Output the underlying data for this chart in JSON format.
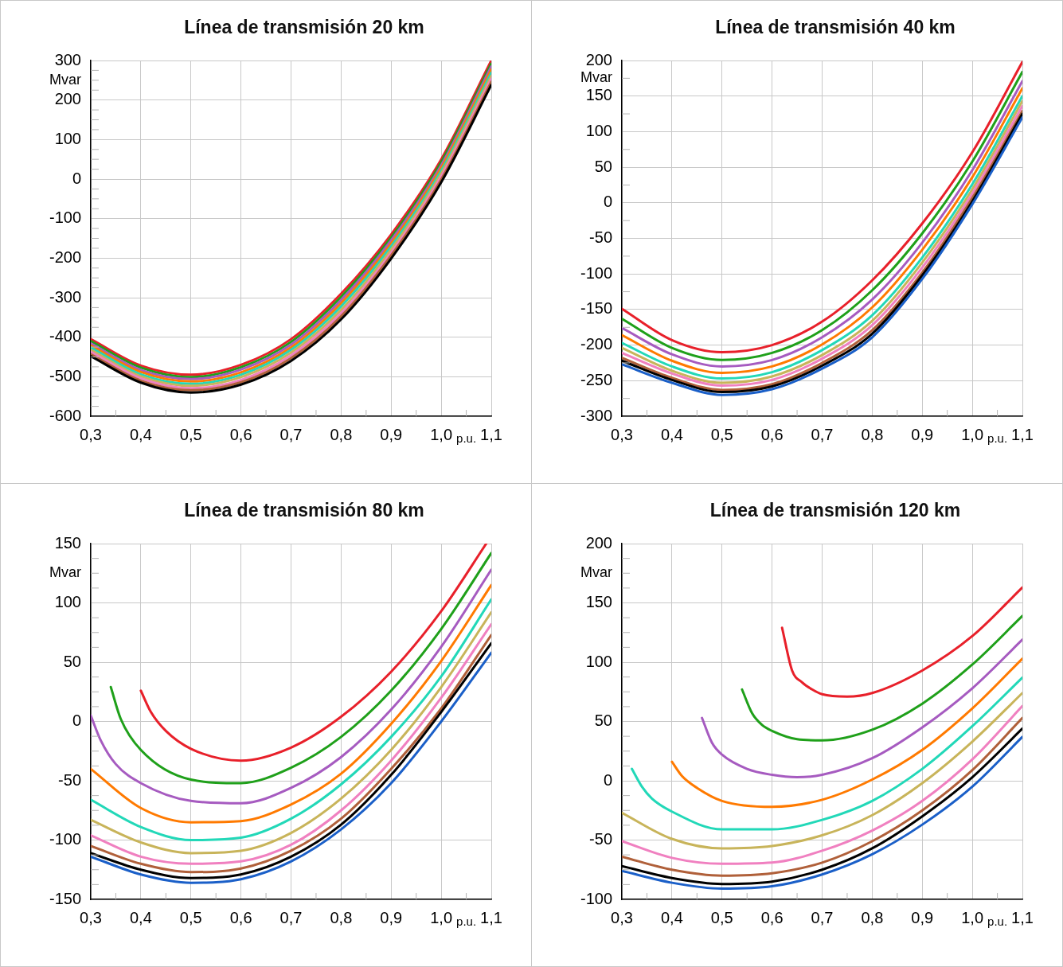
{
  "chart_data": [
    {
      "type": "line",
      "title": "Línea de transmisión 20 km",
      "xlabel": "p.u.",
      "ylabel": "Mvar",
      "grid": true,
      "marker": "none",
      "xlim": [
        0.3,
        1.1
      ],
      "ylim": [
        -600,
        300
      ],
      "xticks": [
        {
          "value": 0.3,
          "label": "0,3"
        },
        {
          "value": 0.35,
          "label": null
        },
        {
          "value": 0.4,
          "label": "0,4"
        },
        {
          "value": 0.45,
          "label": null
        },
        {
          "value": 0.5,
          "label": "0,5"
        },
        {
          "value": 0.55,
          "label": null
        },
        {
          "value": 0.6,
          "label": "0,6"
        },
        {
          "value": 0.65,
          "label": null
        },
        {
          "value": 0.7,
          "label": "0,7"
        },
        {
          "value": 0.75,
          "label": null
        },
        {
          "value": 0.8,
          "label": "0,8"
        },
        {
          "value": 0.85,
          "label": null
        },
        {
          "value": 0.9,
          "label": "0,9"
        },
        {
          "value": 0.95,
          "label": null
        },
        {
          "value": 1.0,
          "label": "1,0"
        },
        {
          "value": 1.05,
          "label": null
        },
        {
          "value": 1.1,
          "label": "1,1"
        }
      ],
      "yticks": [
        -600,
        {
          "value": -575,
          "label": null
        },
        {
          "value": -550,
          "label": null
        },
        {
          "value": -525,
          "label": null
        },
        -500,
        {
          "value": -475,
          "label": null
        },
        {
          "value": -450,
          "label": null
        },
        {
          "value": -425,
          "label": null
        },
        -400,
        {
          "value": -375,
          "label": null
        },
        {
          "value": -350,
          "label": null
        },
        {
          "value": -325,
          "label": null
        },
        -300,
        {
          "value": -275,
          "label": null
        },
        {
          "value": -250,
          "label": null
        },
        {
          "value": -225,
          "label": null
        },
        -200,
        {
          "value": -175,
          "label": null
        },
        {
          "value": -150,
          "label": null
        },
        {
          "value": -125,
          "label": null
        },
        -100,
        {
          "value": -75,
          "label": null
        },
        {
          "value": -50,
          "label": null
        },
        {
          "value": -25,
          "label": null
        },
        0,
        {
          "value": 25,
          "label": null
        },
        {
          "value": 50,
          "label": null
        },
        {
          "value": 75,
          "label": null
        },
        100,
        {
          "value": 125,
          "label": null
        },
        {
          "value": 150,
          "label": null
        },
        {
          "value": 175,
          "label": null
        },
        200,
        {
          "value": 225,
          "label": null
        },
        {
          "value": 250,
          "label": null
        },
        {
          "value": 275,
          "label": null
        },
        300
      ],
      "x": [
        0.3,
        0.4,
        0.5,
        0.6,
        0.7,
        0.8,
        0.9,
        1.0,
        1.1
      ],
      "series": [
        {
          "color": "#000000",
          "values": [
            -448,
            -515,
            -540,
            -520,
            -460,
            -355,
            -201,
            -8,
            238
          ]
        },
        {
          "color": "#b0603a",
          "values": [
            -443,
            -510,
            -534,
            -514,
            -453,
            -347,
            -193,
            -1,
            246
          ]
        },
        {
          "color": "#f080c0",
          "values": [
            -437,
            -504,
            -529,
            -508,
            -446,
            -339,
            -186,
            7,
            254
          ]
        },
        {
          "color": "#c8b45a",
          "values": [
            -432,
            -499,
            -523,
            -501,
            -439,
            -331,
            -178,
            14,
            261
          ]
        },
        {
          "color": "#22d8b8",
          "values": [
            -426,
            -494,
            -518,
            -495,
            -432,
            -322,
            -170,
            21,
            269
          ]
        },
        {
          "color": "#ff7a00",
          "values": [
            -421,
            -488,
            -512,
            -489,
            -426,
            -314,
            -163,
            28,
            277
          ]
        },
        {
          "color": "#a65bc0",
          "values": [
            -416,
            -483,
            -506,
            -482,
            -419,
            -306,
            -155,
            35,
            285
          ]
        },
        {
          "color": "#1fa01a",
          "values": [
            -410,
            -477,
            -501,
            -476,
            -412,
            -298,
            -148,
            43,
            292
          ]
        },
        {
          "color": "#e8202a",
          "values": [
            -405,
            -472,
            -495,
            -470,
            -405,
            -290,
            -140,
            50,
            300
          ]
        }
      ]
    },
    {
      "type": "line",
      "title": "Línea de transmisión 40 km",
      "xlabel": "p.u.",
      "ylabel": "Mvar",
      "grid": true,
      "marker": "none",
      "xlim": [
        0.3,
        1.1
      ],
      "ylim": [
        -300,
        200
      ],
      "xticks": [
        {
          "value": 0.3,
          "label": "0,3"
        },
        {
          "value": 0.35,
          "label": null
        },
        {
          "value": 0.4,
          "label": "0,4"
        },
        {
          "value": 0.45,
          "label": null
        },
        {
          "value": 0.5,
          "label": "0,5"
        },
        {
          "value": 0.55,
          "label": null
        },
        {
          "value": 0.6,
          "label": "0,6"
        },
        {
          "value": 0.65,
          "label": null
        },
        {
          "value": 0.7,
          "label": "0,7"
        },
        {
          "value": 0.75,
          "label": null
        },
        {
          "value": 0.8,
          "label": "0,8"
        },
        {
          "value": 0.85,
          "label": null
        },
        {
          "value": 0.9,
          "label": "0,9"
        },
        {
          "value": 0.95,
          "label": null
        },
        {
          "value": 1.0,
          "label": "1,0"
        },
        {
          "value": 1.05,
          "label": null
        },
        {
          "value": 1.1,
          "label": "1,1"
        }
      ],
      "yticks": [
        -300,
        {
          "value": -275,
          "label": null
        },
        -250,
        {
          "value": -225,
          "label": null
        },
        -200,
        {
          "value": -175,
          "label": null
        },
        -150,
        {
          "value": -125,
          "label": null
        },
        -100,
        {
          "value": -75,
          "label": null
        },
        -50,
        {
          "value": -25,
          "label": null
        },
        0,
        {
          "value": 25,
          "label": null
        },
        50,
        {
          "value": 75,
          "label": null
        },
        100,
        {
          "value": 125,
          "label": null
        },
        150,
        {
          "value": 175,
          "label": null
        },
        200
      ],
      "x": [
        0.3,
        0.4,
        0.5,
        0.6,
        0.7,
        0.8,
        0.9,
        1.0,
        1.1
      ],
      "series": [
        {
          "color": "#1a5fc8",
          "values": [
            -227,
            -253,
            -270,
            -262,
            -233,
            -189,
            -107,
            -2,
            120
          ]
        },
        {
          "color": "#000000",
          "values": [
            -222,
            -249,
            -266,
            -258,
            -229,
            -184,
            -102,
            2,
            125
          ]
        },
        {
          "color": "#b0603a",
          "values": [
            -218,
            -246,
            -263,
            -255,
            -225,
            -179,
            -98,
            7,
            129
          ]
        },
        {
          "color": "#f080c0",
          "values": [
            -211,
            -240,
            -257,
            -249,
            -219,
            -172,
            -91,
            13,
            136
          ]
        },
        {
          "color": "#c8b45a",
          "values": [
            -204,
            -236,
            -253,
            -244,
            -214,
            -166,
            -84,
            19,
            143
          ]
        },
        {
          "color": "#22d8b8",
          "values": [
            -197,
            -230,
            -247,
            -238,
            -207,
            -158,
            -77,
            26,
            150
          ]
        },
        {
          "color": "#ff7a00",
          "values": [
            -186,
            -222,
            -239,
            -230,
            -199,
            -147,
            -66,
            36,
            161
          ]
        },
        {
          "color": "#a65bc0",
          "values": [
            -176,
            -213,
            -230,
            -221,
            -189,
            -136,
            -56,
            46,
            171
          ]
        },
        {
          "color": "#1fa01a",
          "values": [
            -163,
            -204,
            -221,
            -211,
            -179,
            -123,
            -43,
            58,
            184
          ]
        },
        {
          "color": "#e8202a",
          "values": [
            -149,
            -193,
            -210,
            -200,
            -167,
            -109,
            -29,
            71,
            198
          ]
        }
      ]
    },
    {
      "type": "line",
      "title": "Línea de transmisión 80 km",
      "xlabel": "p.u.",
      "ylabel": "Mvar",
      "grid": true,
      "marker": "none",
      "xlim": [
        0.3,
        1.1
      ],
      "ylim": [
        -150,
        150
      ],
      "xticks": [
        {
          "value": 0.3,
          "label": "0,3"
        },
        {
          "value": 0.35,
          "label": null
        },
        {
          "value": 0.4,
          "label": "0,4"
        },
        {
          "value": 0.45,
          "label": null
        },
        {
          "value": 0.5,
          "label": "0,5"
        },
        {
          "value": 0.55,
          "label": null
        },
        {
          "value": 0.6,
          "label": "0,6"
        },
        {
          "value": 0.65,
          "label": null
        },
        {
          "value": 0.7,
          "label": "0,7"
        },
        {
          "value": 0.75,
          "label": null
        },
        {
          "value": 0.8,
          "label": "0,8"
        },
        {
          "value": 0.85,
          "label": null
        },
        {
          "value": 0.9,
          "label": "0,9"
        },
        {
          "value": 0.95,
          "label": null
        },
        {
          "value": 1.0,
          "label": "1,0"
        },
        {
          "value": 1.05,
          "label": null
        },
        {
          "value": 1.1,
          "label": "1,1"
        }
      ],
      "yticks": [
        -150,
        {
          "value": -137.5,
          "label": null
        },
        {
          "value": -125,
          "label": null
        },
        {
          "value": -112.5,
          "label": null
        },
        -100,
        {
          "value": -87.5,
          "label": null
        },
        {
          "value": -75,
          "label": null
        },
        {
          "value": -62.5,
          "label": null
        },
        -50,
        {
          "value": -37.5,
          "label": null
        },
        {
          "value": -25,
          "label": null
        },
        {
          "value": -12.5,
          "label": null
        },
        0,
        {
          "value": 12.5,
          "label": null
        },
        {
          "value": 25,
          "label": null
        },
        {
          "value": 37.5,
          "label": null
        },
        50,
        {
          "value": 62.5,
          "label": null
        },
        {
          "value": 75,
          "label": null
        },
        {
          "value": 87.5,
          "label": null
        },
        100,
        {
          "value": 112.5,
          "label": null
        },
        {
          "value": 125,
          "label": null
        },
        {
          "value": 137.5,
          "label": null
        },
        150
      ],
      "x": [
        0.3,
        0.4,
        0.5,
        0.6,
        0.7,
        0.8,
        0.9,
        1.0,
        1.1
      ],
      "series": [
        {
          "color": "#1a5fc8",
          "values": [
            -114,
            -129,
            -136,
            -133,
            -118,
            -91,
            -52,
            0,
            58
          ]
        },
        {
          "color": "#000000",
          "values": [
            -111,
            -125,
            -132,
            -129,
            -114,
            -87,
            -45,
            8,
            66
          ]
        },
        {
          "color": "#b0603a",
          "values": [
            -105,
            -120,
            -127,
            -124,
            -109,
            -82,
            -40,
            11,
            73
          ]
        },
        {
          "color": "#f080c0",
          "values": [
            -96,
            -114,
            -120,
            -118,
            -104,
            -75,
            -33,
            20,
            82
          ]
        },
        {
          "color": "#c8b45a",
          "values": [
            -83,
            -102,
            -111,
            -109,
            -94,
            -65,
            -24,
            29,
            92
          ]
        },
        {
          "color": "#22d8b8",
          "values": [
            -66,
            -89,
            -100,
            -98,
            -82,
            -53,
            -13,
            38,
            103
          ]
        },
        {
          "color": "#ff7a00",
          "values": [
            -40,
            -73,
            -85,
            -84,
            -70,
            -44,
            -2,
            51,
            115
          ]
        },
        {
          "color": "#a65bc0",
          "x": [
            0.3,
            0.32,
            0.35,
            0.4,
            0.5,
            0.6,
            0.7,
            0.8,
            0.9,
            1.0,
            1.1
          ],
          "values": [
            5,
            -16,
            -36,
            -52,
            -67,
            -69,
            -56,
            -30,
            10,
            63,
            128
          ]
        },
        {
          "color": "#1fa01a",
          "x": [
            0.34,
            0.36,
            0.4,
            0.5,
            0.6,
            0.7,
            0.8,
            0.9,
            1.0,
            1.1
          ],
          "values": [
            29,
            2,
            -24,
            -49,
            -52,
            -39,
            -13,
            26,
            78,
            142
          ]
        },
        {
          "color": "#e8202a",
          "x": [
            0.4,
            0.42,
            0.45,
            0.5,
            0.6,
            0.7,
            0.8,
            0.9,
            1.0,
            1.09
          ],
          "values": [
            26,
            8,
            -8,
            -23,
            -33,
            -22,
            4,
            42,
            93,
            150
          ]
        }
      ]
    },
    {
      "type": "line",
      "title": "Línea de transmisión 120 km",
      "xlabel": "p.u.",
      "ylabel": "Mvar",
      "grid": true,
      "marker": "none",
      "xlim": [
        0.3,
        1.1
      ],
      "ylim": [
        -100,
        200
      ],
      "xticks": [
        {
          "value": 0.3,
          "label": "0,3"
        },
        {
          "value": 0.35,
          "label": null
        },
        {
          "value": 0.4,
          "label": "0,4"
        },
        {
          "value": 0.45,
          "label": null
        },
        {
          "value": 0.5,
          "label": "0,5"
        },
        {
          "value": 0.55,
          "label": null
        },
        {
          "value": 0.6,
          "label": "0,6"
        },
        {
          "value": 0.65,
          "label": null
        },
        {
          "value": 0.7,
          "label": "0,7"
        },
        {
          "value": 0.75,
          "label": null
        },
        {
          "value": 0.8,
          "label": "0,8"
        },
        {
          "value": 0.85,
          "label": null
        },
        {
          "value": 0.9,
          "label": "0,9"
        },
        {
          "value": 0.95,
          "label": null
        },
        {
          "value": 1.0,
          "label": "1,0"
        },
        {
          "value": 1.05,
          "label": null
        },
        {
          "value": 1.1,
          "label": "1,1"
        }
      ],
      "yticks": [
        -100,
        {
          "value": -87.5,
          "label": null
        },
        {
          "value": -75,
          "label": null
        },
        {
          "value": -62.5,
          "label": null
        },
        -50,
        {
          "value": -37.5,
          "label": null
        },
        {
          "value": -25,
          "label": null
        },
        {
          "value": -12.5,
          "label": null
        },
        0,
        {
          "value": 12.5,
          "label": null
        },
        {
          "value": 25,
          "label": null
        },
        {
          "value": 37.5,
          "label": null
        },
        50,
        {
          "value": 62.5,
          "label": null
        },
        {
          "value": 75,
          "label": null
        },
        {
          "value": 87.5,
          "label": null
        },
        100,
        {
          "value": 112.5,
          "label": null
        },
        {
          "value": 125,
          "label": null
        },
        {
          "value": 137.5,
          "label": null
        },
        150,
        {
          "value": 162.5,
          "label": null
        },
        {
          "value": 175,
          "label": null
        },
        {
          "value": 187.5,
          "label": null
        },
        200
      ],
      "x": [
        0.3,
        0.4,
        0.5,
        0.6,
        0.7,
        0.8,
        0.9,
        1.0,
        1.1
      ],
      "series": [
        {
          "color": "#1a5fc8",
          "values": [
            -76,
            -86,
            -91,
            -89,
            -79,
            -62,
            -37,
            -5,
            37
          ]
        },
        {
          "color": "#000000",
          "values": [
            -72,
            -82,
            -87,
            -85,
            -75,
            -57,
            -30,
            3,
            44
          ]
        },
        {
          "color": "#b0603a",
          "values": [
            -64,
            -75,
            -80,
            -78,
            -69,
            -51,
            -25,
            9,
            53
          ]
        },
        {
          "color": "#f080c0",
          "values": [
            -51,
            -65,
            -70,
            -69,
            -59,
            -42,
            -17,
            18,
            63
          ]
        },
        {
          "color": "#c8b45a",
          "values": [
            -27,
            -49,
            -57,
            -55,
            -46,
            -29,
            -2,
            33,
            74
          ]
        },
        {
          "color": "#22d8b8",
          "x": [
            0.32,
            0.34,
            0.36,
            0.4,
            0.5,
            0.6,
            0.7,
            0.8,
            0.9,
            1.0,
            1.1
          ],
          "values": [
            10,
            -5,
            -15,
            -26,
            -41,
            -41,
            -33,
            -17,
            10,
            46,
            87
          ]
        },
        {
          "color": "#ff7a00",
          "x": [
            0.4,
            0.42,
            0.45,
            0.5,
            0.6,
            0.7,
            0.8,
            0.9,
            1.0,
            1.1
          ],
          "values": [
            16,
            4,
            -6,
            -17,
            -22,
            -16,
            1,
            26,
            61,
            103
          ]
        },
        {
          "color": "#a65bc0",
          "x": [
            0.46,
            0.48,
            0.5,
            0.55,
            0.6,
            0.65,
            0.7,
            0.8,
            0.9,
            1.0,
            1.1
          ],
          "values": [
            53,
            32,
            22,
            10,
            5,
            3,
            5,
            19,
            45,
            78,
            119
          ]
        },
        {
          "color": "#1fa01a",
          "x": [
            0.54,
            0.56,
            0.58,
            0.6,
            0.65,
            0.7,
            0.8,
            0.9,
            1.0,
            1.1
          ],
          "values": [
            77,
            57,
            47,
            42,
            35,
            34,
            43,
            65,
            98,
            139
          ]
        },
        {
          "color": "#e8202a",
          "x": [
            0.62,
            0.64,
            0.66,
            0.68,
            0.7,
            0.75,
            0.8,
            0.9,
            1.0,
            1.1
          ],
          "values": [
            129,
            93,
            83,
            77,
            73,
            71,
            74,
            93,
            122,
            163
          ]
        }
      ]
    }
  ]
}
